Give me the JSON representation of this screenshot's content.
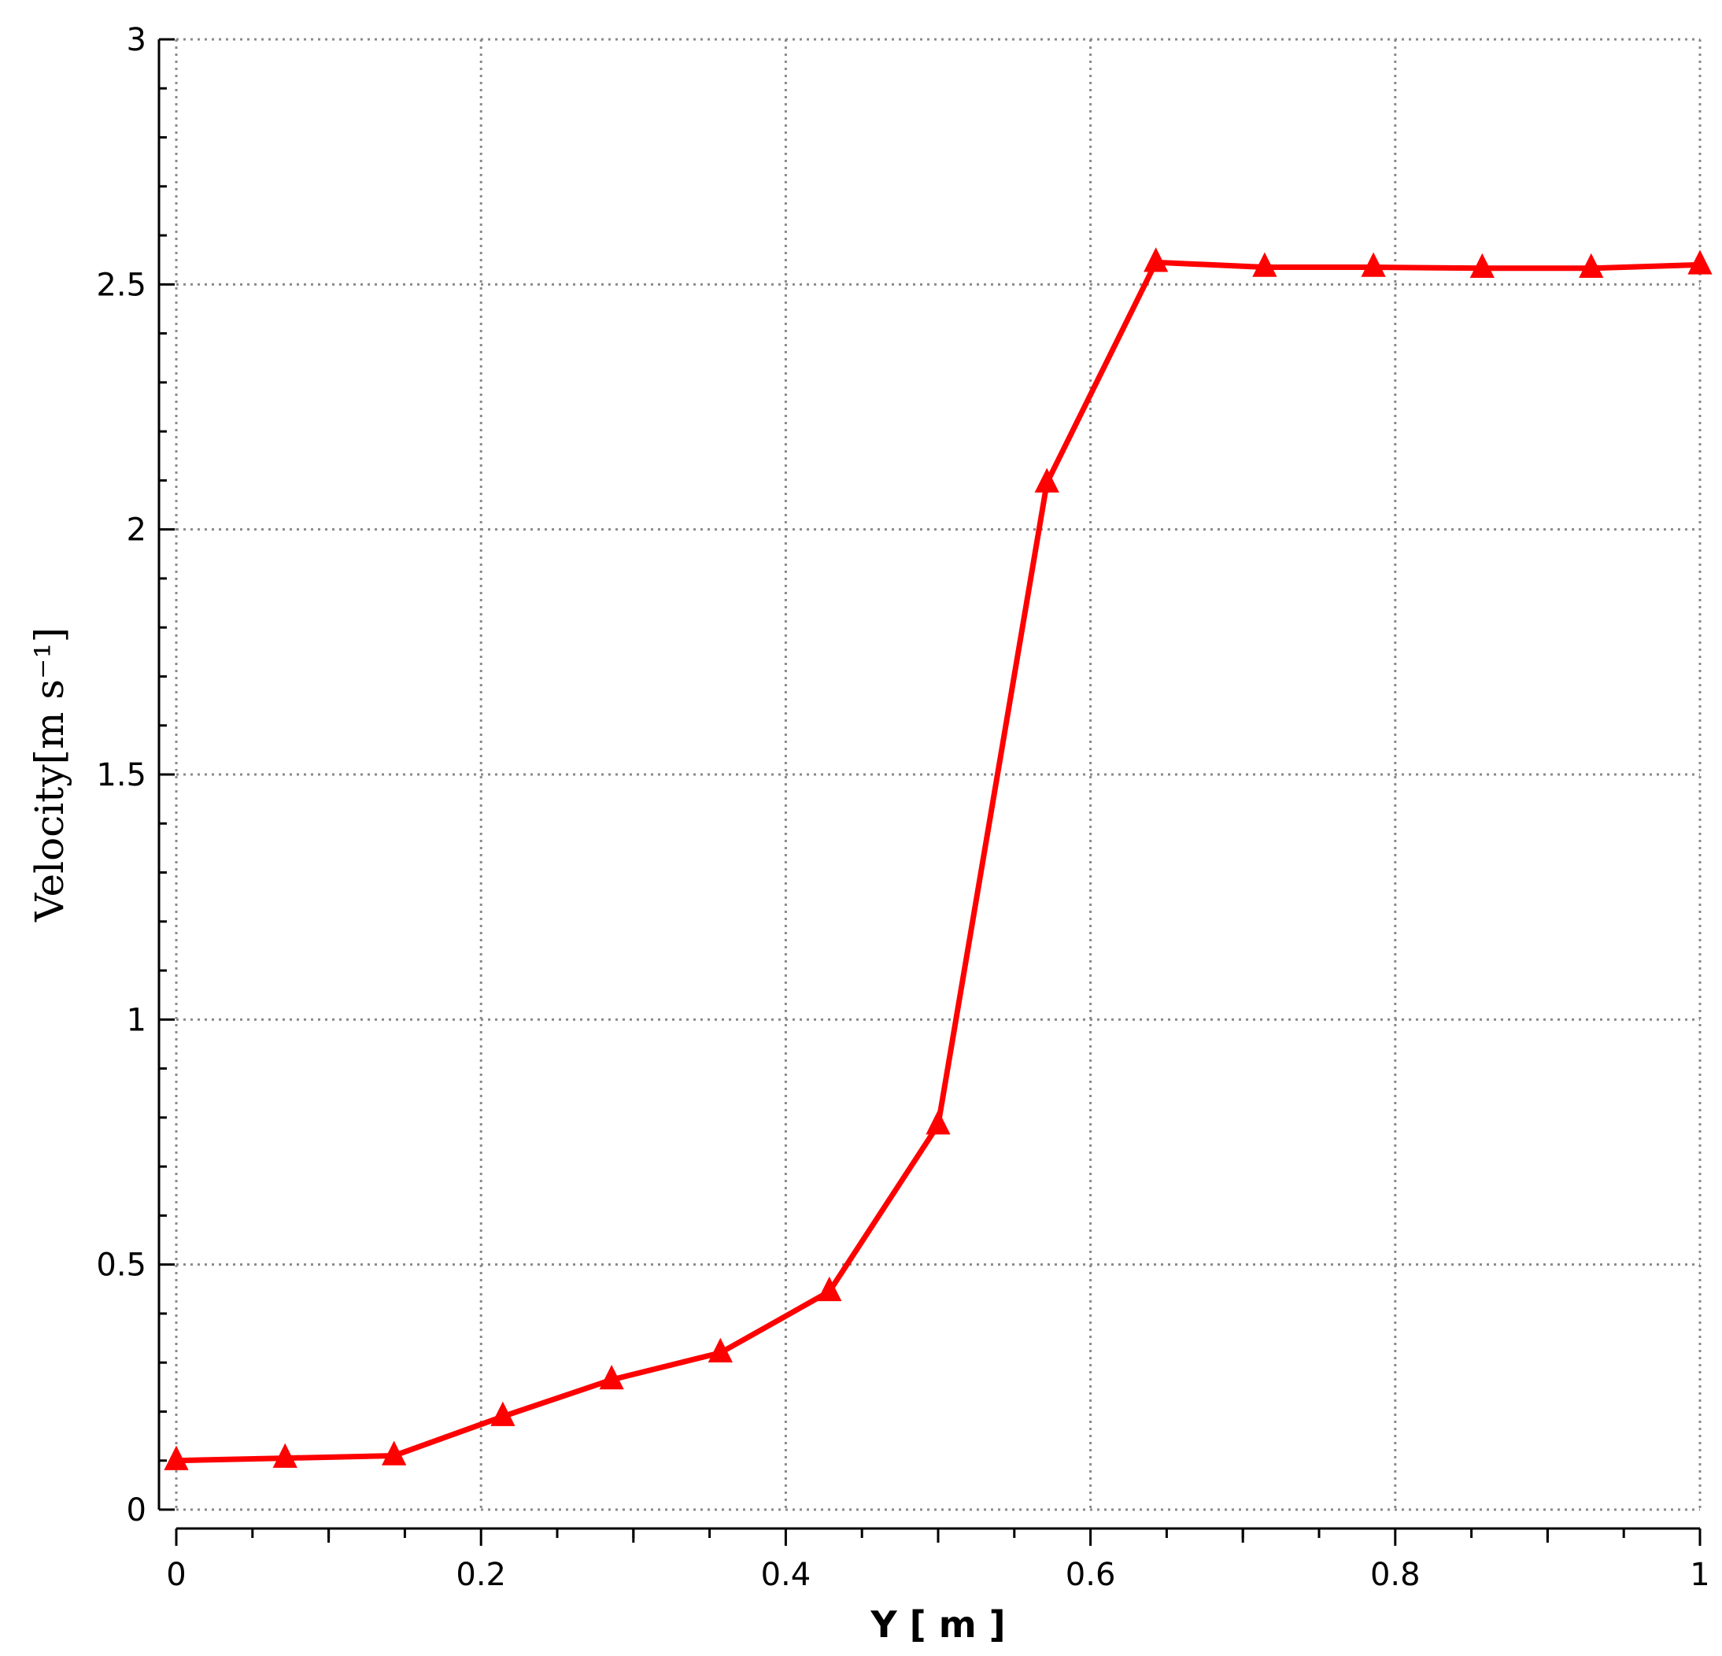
{
  "chart_data": {
    "type": "line",
    "xlabel": "Y [ m ]",
    "ylabel": "Velocity[m s⁻¹]",
    "xlim": [
      0,
      1
    ],
    "ylim": [
      0,
      3
    ],
    "x_ticks": [
      "0",
      "0.2",
      "0.4",
      "0.6",
      "0.8",
      "1"
    ],
    "y_ticks": [
      "0",
      "0.5",
      "1",
      "1.5",
      "2",
      "2.5",
      "3"
    ],
    "grid": true,
    "series": [
      {
        "color": "#ff0000",
        "marker": "triangle",
        "x": [
          0,
          0.0714,
          0.1429,
          0.2143,
          0.2857,
          0.3571,
          0.4286,
          0.5,
          0.5714,
          0.6429,
          0.7143,
          0.7857,
          0.8571,
          0.9286,
          1.0
        ],
        "y": [
          0.1,
          0.105,
          0.11,
          0.19,
          0.265,
          0.32,
          0.445,
          0.785,
          2.095,
          2.545,
          2.535,
          2.535,
          2.533,
          2.533,
          2.54
        ]
      }
    ]
  }
}
